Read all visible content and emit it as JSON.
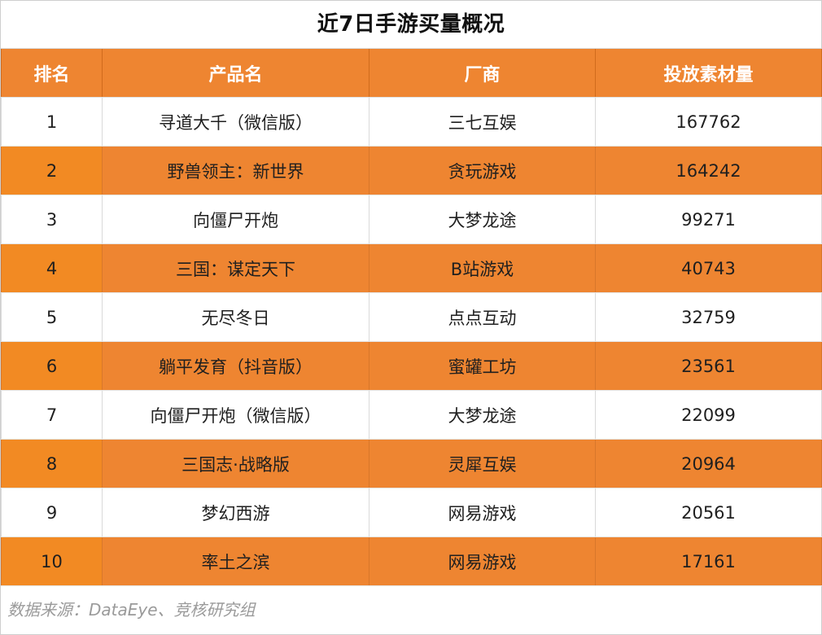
{
  "title": "近7日手游买量概况",
  "table": {
    "headers": [
      "排名",
      "产品名",
      "厂商",
      "投放素材量"
    ],
    "rows": [
      [
        "1",
        "寻道大千（微信版）",
        "三七互娱",
        "167762"
      ],
      [
        "2",
        "野兽领主：新世界",
        "贪玩游戏",
        "164242"
      ],
      [
        "3",
        "向僵尸开炮",
        "大梦龙途",
        "99271"
      ],
      [
        "4",
        "三国：谋定天下",
        "B站游戏",
        "40743"
      ],
      [
        "5",
        "无尽冬日",
        "点点互动",
        "32759"
      ],
      [
        "6",
        "躺平发育（抖音版）",
        "蜜罐工坊",
        "23561"
      ],
      [
        "7",
        "向僵尸开炮（微信版）",
        "大梦龙途",
        "22099"
      ],
      [
        "8",
        "三国志·战略版",
        "灵犀互娱",
        "20964"
      ],
      [
        "9",
        "梦幻西游",
        "网易游戏",
        "20561"
      ],
      [
        "10",
        "率土之滨",
        "网易游戏",
        "17161"
      ]
    ]
  },
  "footnote": "数据来源：DataEye、竞核研究组",
  "colors": {
    "header_bg": "#ee8531",
    "stripe_bg": "#ee8531",
    "header_text": "#ffffff"
  }
}
